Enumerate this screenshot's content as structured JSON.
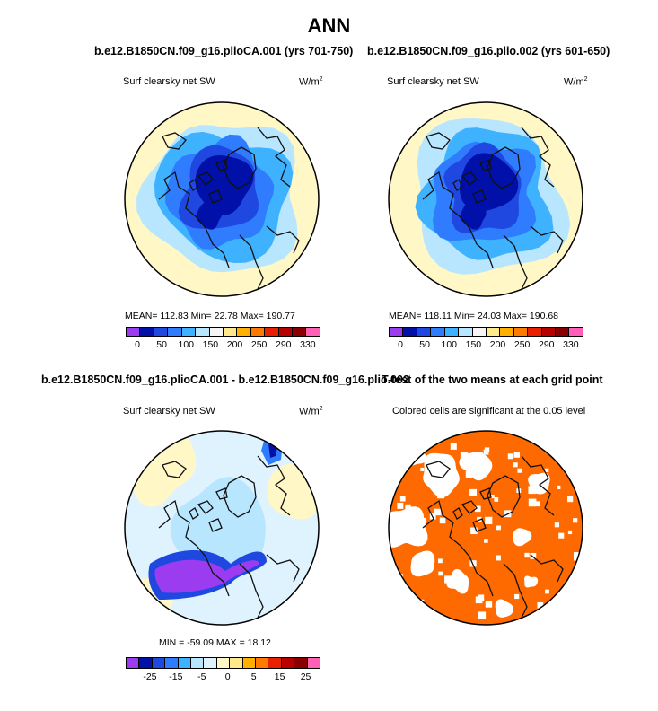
{
  "title": "ANN",
  "colors": {
    "ocean": "#c8e8fb",
    "land": "#fff7c6",
    "ttest_fill": "#ff6a00",
    "coast": "#111111"
  },
  "chart_data": [
    {
      "type": "heatmap",
      "projection": "north-polar-stereographic",
      "title": "b.e12.B1850CN.f09_g16.plioCA.001 (yrs 701-750)",
      "field_label": "Surf clearsky net SW",
      "units_base": "W/m",
      "units_exp": "2",
      "stats": {
        "mean": "112.83",
        "min": "22.78",
        "max": "190.77"
      },
      "stats_text": "MEAN= 112.83   Min= 22.78   Max= 190.77",
      "levels": [
        0,
        50,
        100,
        150,
        200,
        250,
        290,
        330
      ],
      "level_labels": [
        "0",
        "50",
        "100",
        "150",
        "200",
        "250",
        "290",
        "330"
      ],
      "colorbar": [
        "#9b3cf0",
        "#0010a8",
        "#1f48e0",
        "#2f7cff",
        "#3eb2ff",
        "#b8e6ff",
        "#f5f5f5",
        "#ffe98a",
        "#ffb000",
        "#ff7a00",
        "#e82000",
        "#b80000",
        "#8a0000",
        "#ff5fb4"
      ]
    },
    {
      "type": "heatmap",
      "projection": "north-polar-stereographic",
      "title": "b.e12.B1850CN.f09_g16.plio.002 (yrs 601-650)",
      "field_label": "Surf clearsky net SW",
      "units_base": "W/m",
      "units_exp": "2",
      "stats": {
        "mean": "118.11",
        "min": "24.03",
        "max": "190.68"
      },
      "stats_text": "MEAN= 118.11   Min= 24.03   Max= 190.68",
      "levels": [
        0,
        50,
        100,
        150,
        200,
        250,
        290,
        330
      ],
      "level_labels": [
        "0",
        "50",
        "100",
        "150",
        "200",
        "250",
        "290",
        "330"
      ],
      "colorbar": [
        "#9b3cf0",
        "#0010a8",
        "#1f48e0",
        "#2f7cff",
        "#3eb2ff",
        "#b8e6ff",
        "#f5f5f5",
        "#ffe98a",
        "#ffb000",
        "#ff7a00",
        "#e82000",
        "#b80000",
        "#8a0000",
        "#ff5fb4"
      ]
    },
    {
      "type": "heatmap",
      "projection": "north-polar-stereographic",
      "title": "b.e12.B1850CN.f09_g16.plioCA.001 - b.e12.B1850CN.f09_g16.plio.002",
      "field_label": "Surf clearsky net SW",
      "units_base": "W/m",
      "units_exp": "2",
      "stats": {
        "min": "-59.09",
        "max": "18.12"
      },
      "stats_text": "MIN = -59.09  MAX =  18.12",
      "levels": [
        -25,
        -15,
        -5,
        0,
        5,
        15,
        25
      ],
      "level_labels": [
        "-25",
        "-15",
        "-5",
        "0",
        "5",
        "15",
        "25"
      ],
      "colorbar": [
        "#9b3cf0",
        "#0010a8",
        "#1f48e0",
        "#2f7cff",
        "#3eb2ff",
        "#b8e6ff",
        "#dff3ff",
        "#fff7c6",
        "#ffe98a",
        "#ffb000",
        "#ff7a00",
        "#e82000",
        "#b80000",
        "#8a0000",
        "#ff5fb4"
      ]
    },
    {
      "type": "heatmap",
      "projection": "north-polar-stereographic",
      "title": "T-test of the two means at each grid point",
      "field_label": "Colored cells are significant at the 0.05 level"
    }
  ]
}
